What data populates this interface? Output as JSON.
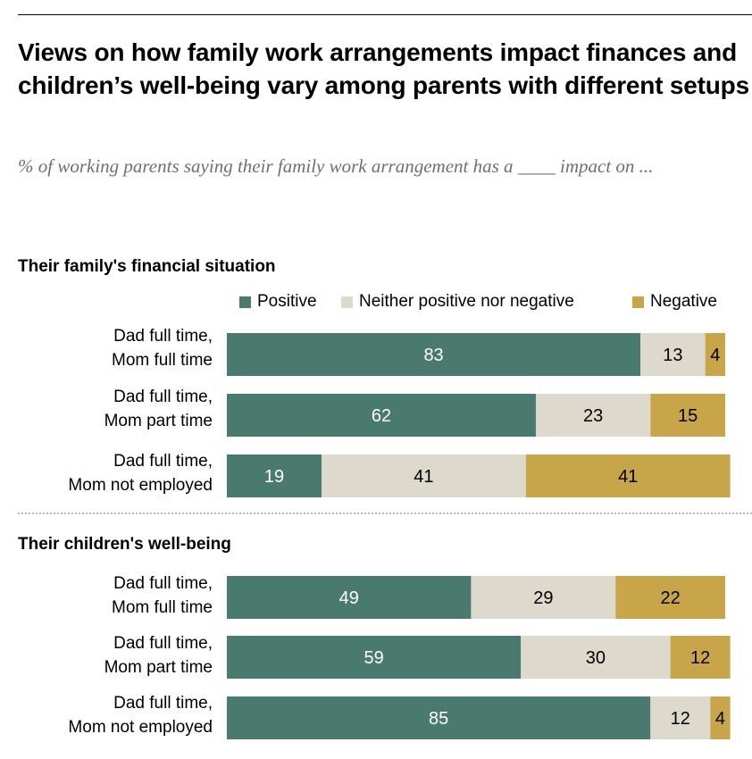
{
  "title": "Views on how family work arrangements impact finances and children’s well-being vary among parents with different setups",
  "subtitle": "% of working parents saying their family work arrangement has a ____ impact on ...",
  "legend": {
    "positive": "Positive",
    "neither": "Neither positive nor negative",
    "negative": "Negative"
  },
  "colors": {
    "positive": "#4a7a6d",
    "neither": "#ddd9cc",
    "negative": "#c9a54a",
    "label_on_positive": "#ffffff",
    "label_on_other": "#000000"
  },
  "chart_data": [
    {
      "type": "bar",
      "orientation": "horizontal",
      "stacked": true,
      "title": "Their family's financial situation",
      "categories": [
        [
          "Dad full time,",
          "Mom full time"
        ],
        [
          "Dad full time,",
          "Mom part time"
        ],
        [
          "Dad full time,",
          "Mom not employed"
        ]
      ],
      "series": [
        {
          "name": "Positive",
          "values": [
            83,
            62,
            19
          ]
        },
        {
          "name": "Neither positive nor negative",
          "values": [
            13,
            23,
            41
          ]
        },
        {
          "name": "Negative",
          "values": [
            4,
            15,
            41
          ]
        }
      ],
      "xlim": [
        0,
        100
      ],
      "grid": false,
      "legend_position": "top-right"
    },
    {
      "type": "bar",
      "orientation": "horizontal",
      "stacked": true,
      "title": "Their children's well-being",
      "categories": [
        [
          "Dad full time,",
          "Mom full time"
        ],
        [
          "Dad full time,",
          "Mom part time"
        ],
        [
          "Dad full time,",
          "Mom not employed"
        ]
      ],
      "series": [
        {
          "name": "Positive",
          "values": [
            49,
            59,
            85
          ]
        },
        {
          "name": "Neither positive nor negative",
          "values": [
            29,
            30,
            12
          ]
        },
        {
          "name": "Negative",
          "values": [
            22,
            12,
            4
          ]
        }
      ],
      "xlim": [
        0,
        100
      ],
      "grid": false
    }
  ]
}
